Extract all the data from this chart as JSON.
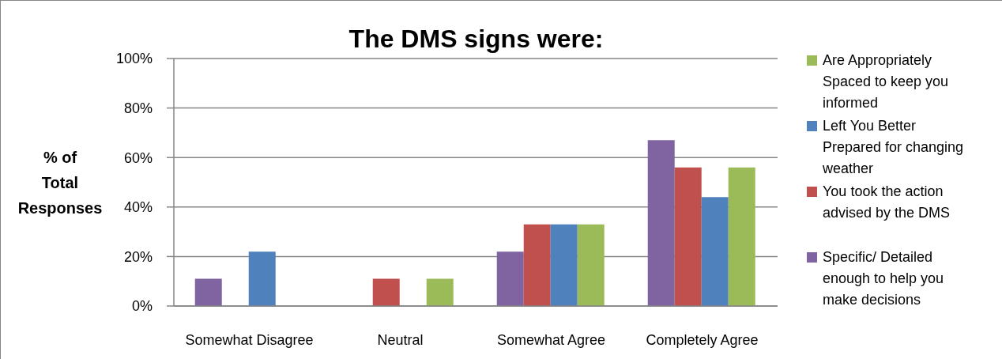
{
  "chart_data": {
    "type": "bar",
    "title": "The DMS signs were:",
    "ylabel": "% of Total Responses",
    "categories": [
      "Somewhat Disagree",
      "Neutral",
      "Somewhat Agree",
      "Completely Agree"
    ],
    "series": [
      {
        "name": "Specific/ Detailed enough to help you make decisions",
        "color": "#8064a2",
        "values": [
          11,
          0,
          22,
          67
        ]
      },
      {
        "name": "You took the action advised by the DMS",
        "color": "#c0504d",
        "values": [
          0,
          11,
          33,
          56
        ]
      },
      {
        "name": "Left You Better Prepared for changing weather",
        "color": "#4f81bd",
        "values": [
          22,
          0,
          33,
          44
        ]
      },
      {
        "name": "Are Appropriately Spaced to keep you informed",
        "color": "#9bbb59",
        "values": [
          0,
          11,
          33,
          56
        ]
      }
    ],
    "ylim": [
      0,
      100
    ],
    "yticks": [
      {
        "value": 0,
        "label": "0%"
      },
      {
        "value": 20,
        "label": "20%"
      },
      {
        "value": 40,
        "label": "40%"
      },
      {
        "value": 60,
        "label": "60%"
      },
      {
        "value": 80,
        "label": "80%"
      },
      {
        "value": 100,
        "label": "100%"
      }
    ],
    "grid": "y",
    "legend": "right"
  }
}
